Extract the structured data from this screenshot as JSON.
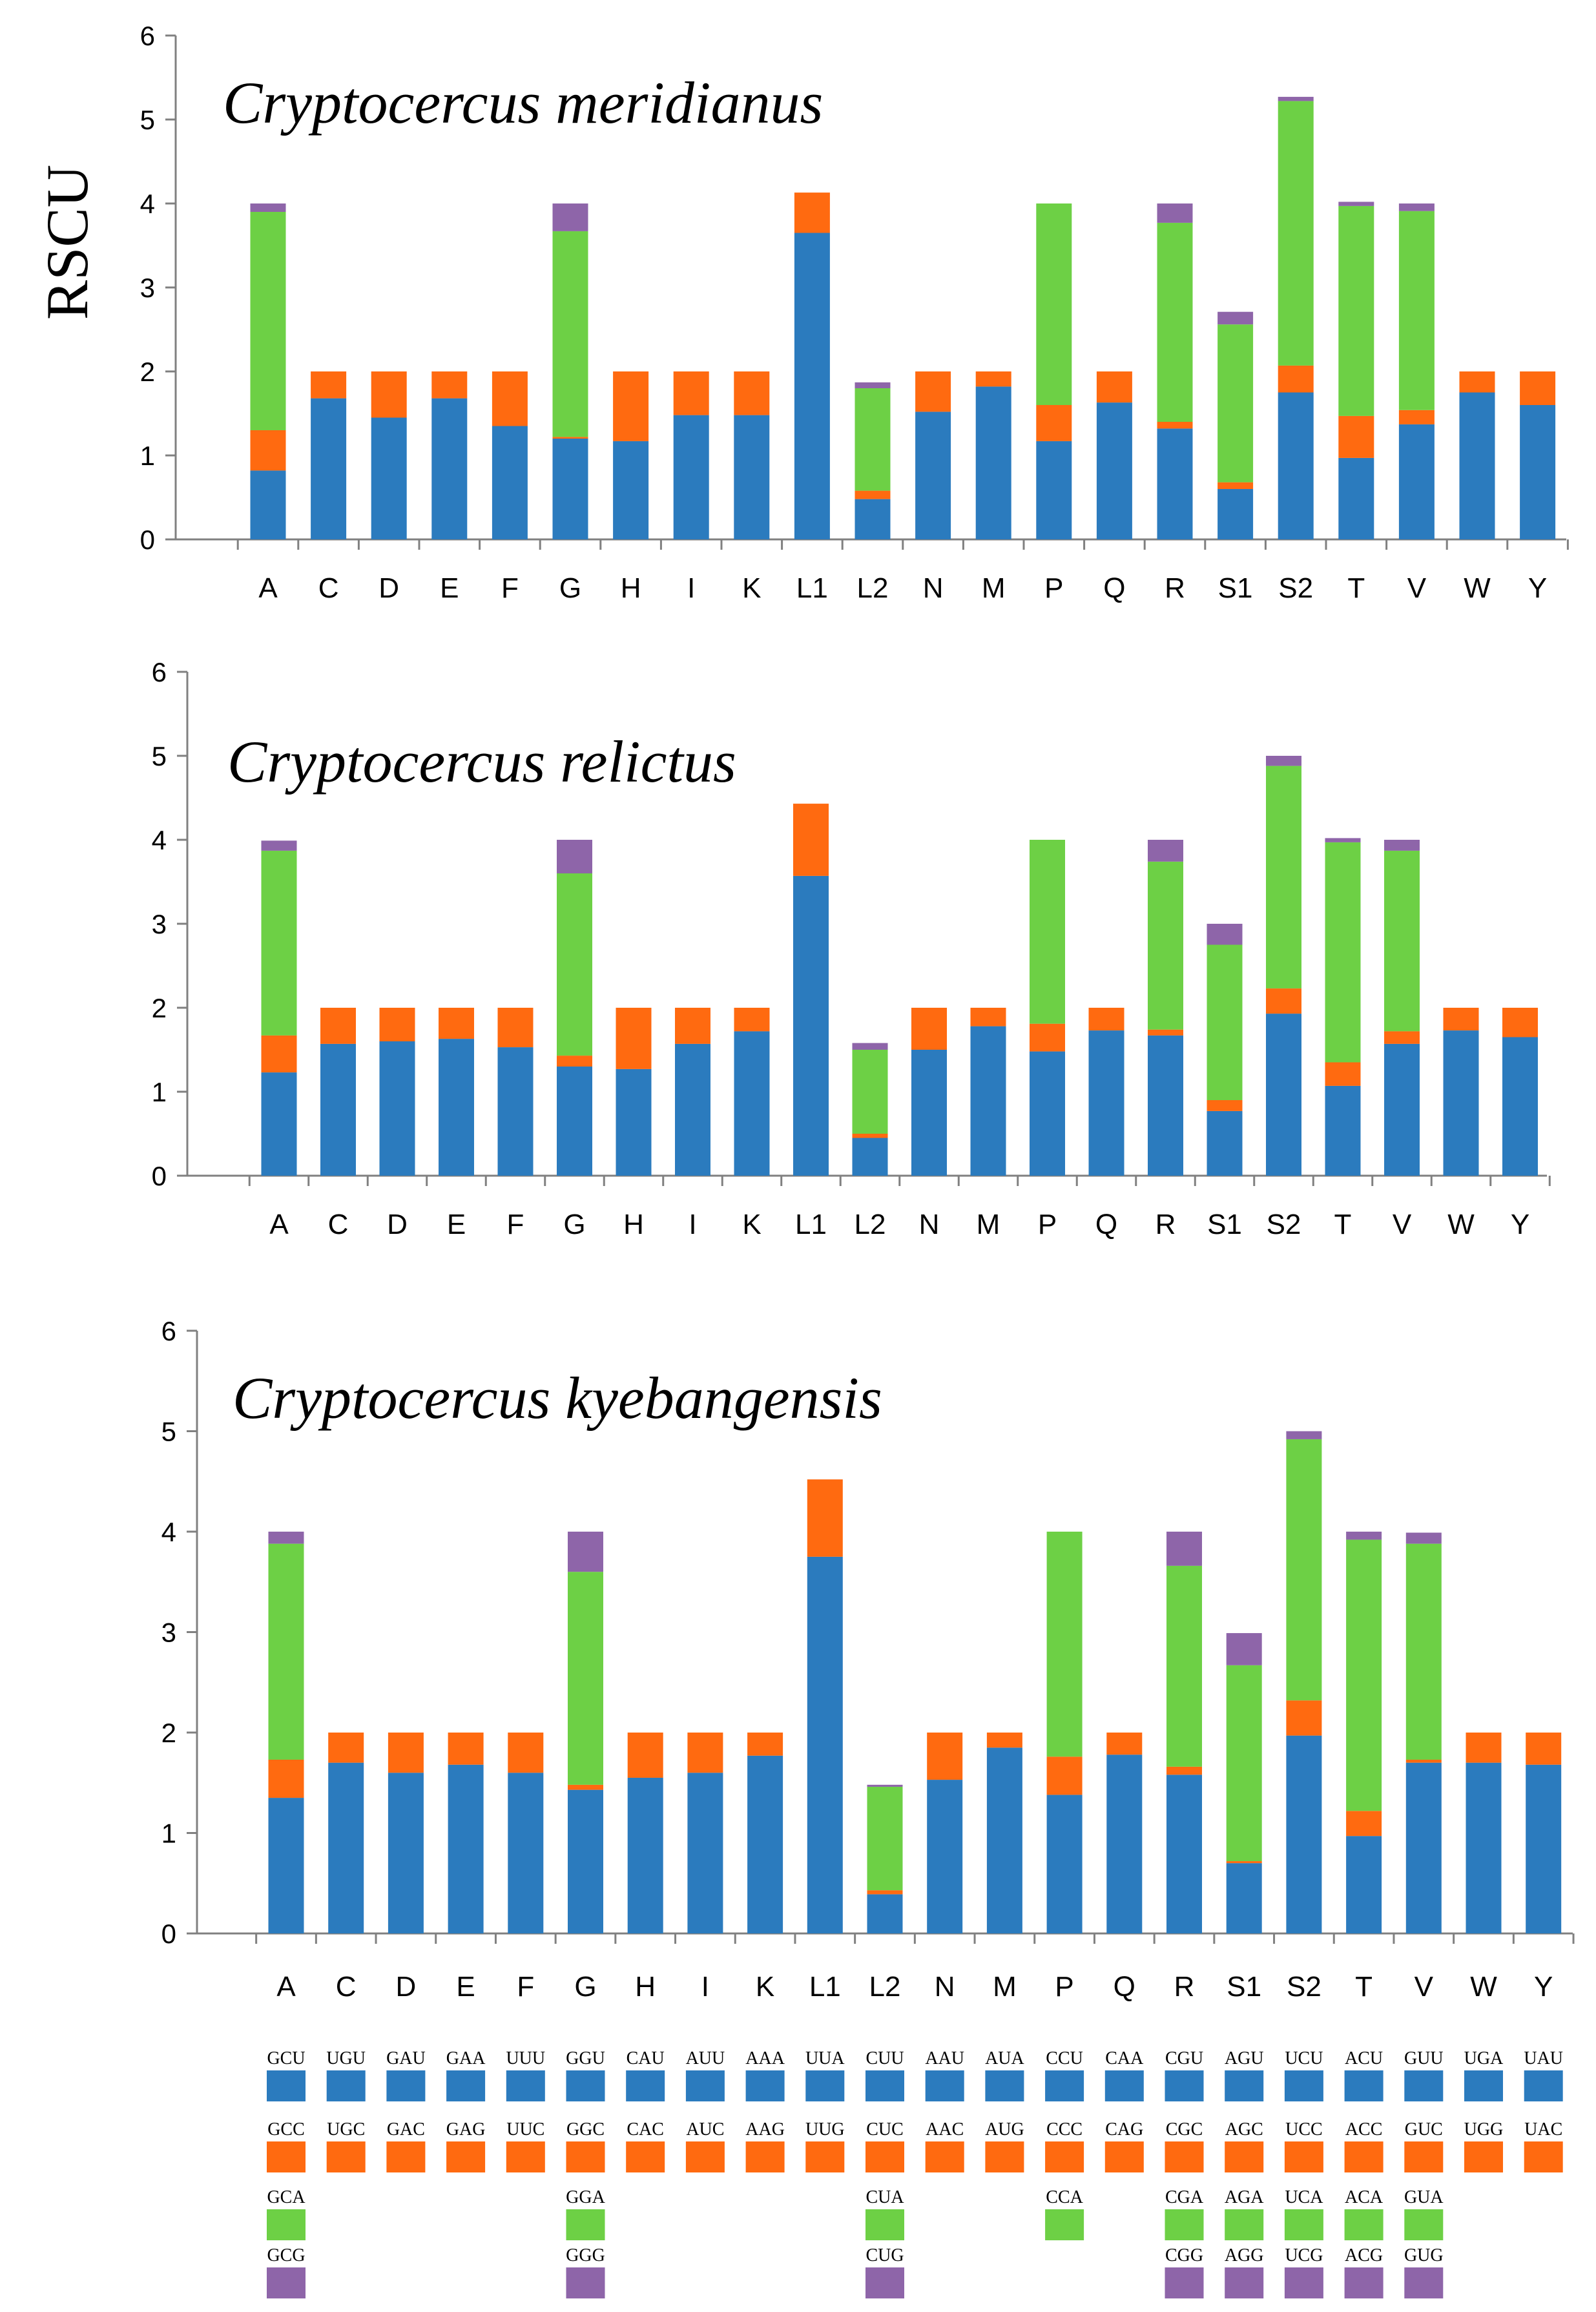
{
  "colors": {
    "blue": "#2B7BBE",
    "orange": "#FF6A10",
    "green": "#6DD045",
    "purple": "#8E65A9"
  },
  "y_axis_label": "RSCU",
  "chart_data": [
    {
      "type": "bar",
      "stacked": true,
      "title": "Cryptocercus meridianus",
      "ylabel": "RSCU",
      "ylim": [
        0,
        6
      ],
      "yticks": [
        "0",
        "1",
        "2",
        "3",
        "4",
        "5",
        "6"
      ],
      "categories": [
        "A",
        "C",
        "D",
        "E",
        "F",
        "G",
        "H",
        "I",
        "K",
        "L1",
        "L2",
        "N",
        "M",
        "P",
        "Q",
        "R",
        "S1",
        "S2",
        "T",
        "V",
        "W",
        "Y"
      ],
      "series": [
        {
          "name": "codon 1",
          "color": "blue",
          "values": [
            0.82,
            1.68,
            1.45,
            1.68,
            1.35,
            1.2,
            1.17,
            1.48,
            1.48,
            3.65,
            0.48,
            1.52,
            1.82,
            1.17,
            1.63,
            1.32,
            0.6,
            1.75,
            0.97,
            1.37,
            1.75,
            1.6
          ]
        },
        {
          "name": "codon 2",
          "color": "orange",
          "values": [
            0.48,
            0.32,
            0.55,
            0.32,
            0.65,
            0.02,
            0.83,
            0.52,
            0.52,
            0.48,
            0.1,
            0.48,
            0.18,
            0.43,
            0.37,
            0.08,
            0.08,
            0.32,
            0.5,
            0.17,
            0.25,
            0.4
          ]
        },
        {
          "name": "codon 3",
          "color": "green",
          "values": [
            2.6,
            0,
            0,
            0,
            0,
            2.45,
            0,
            0,
            0,
            0,
            1.22,
            0,
            0,
            2.4,
            0,
            2.37,
            1.88,
            3.15,
            2.5,
            2.37,
            0,
            0
          ]
        },
        {
          "name": "codon 4",
          "color": "purple",
          "values": [
            0.1,
            0,
            0,
            0,
            0,
            0.33,
            0,
            0,
            0,
            0,
            0.07,
            0,
            0,
            0,
            0,
            0.23,
            0.15,
            0.05,
            0.05,
            0.09,
            0,
            0
          ]
        }
      ]
    },
    {
      "type": "bar",
      "stacked": true,
      "title": "Cryptocercus relictus",
      "ylabel": "",
      "ylim": [
        0,
        6
      ],
      "yticks": [
        "0",
        "1",
        "2",
        "3",
        "4",
        "5",
        "6"
      ],
      "categories": [
        "A",
        "C",
        "D",
        "E",
        "F",
        "G",
        "H",
        "I",
        "K",
        "L1",
        "L2",
        "N",
        "M",
        "P",
        "Q",
        "R",
        "S1",
        "S2",
        "T",
        "V",
        "W",
        "Y"
      ],
      "series": [
        {
          "name": "codon 1",
          "color": "blue",
          "values": [
            1.23,
            1.57,
            1.6,
            1.63,
            1.53,
            1.3,
            1.27,
            1.57,
            1.72,
            3.57,
            0.45,
            1.5,
            1.78,
            1.48,
            1.73,
            1.67,
            0.77,
            1.93,
            1.07,
            1.57,
            1.73,
            1.65
          ]
        },
        {
          "name": "codon 2",
          "color": "orange",
          "values": [
            0.44,
            0.43,
            0.4,
            0.37,
            0.47,
            0.13,
            0.73,
            0.43,
            0.28,
            0.86,
            0.05,
            0.5,
            0.22,
            0.33,
            0.27,
            0.07,
            0.13,
            0.3,
            0.28,
            0.15,
            0.27,
            0.35
          ]
        },
        {
          "name": "codon 3",
          "color": "green",
          "values": [
            2.2,
            0,
            0,
            0,
            0,
            2.17,
            0,
            0,
            0,
            0,
            1.0,
            0,
            0,
            2.19,
            0,
            2.0,
            1.85,
            2.65,
            2.62,
            2.15,
            0,
            0
          ]
        },
        {
          "name": "codon 4",
          "color": "purple",
          "values": [
            0.12,
            0,
            0,
            0,
            0,
            0.4,
            0,
            0,
            0,
            0,
            0.08,
            0,
            0,
            0,
            0,
            0.26,
            0.25,
            0.12,
            0.05,
            0.13,
            0,
            0
          ]
        }
      ]
    },
    {
      "type": "bar",
      "stacked": true,
      "title": "Cryptocercus kyebangensis",
      "ylabel": "",
      "ylim": [
        0,
        6
      ],
      "yticks": [
        "0",
        "1",
        "2",
        "3",
        "4",
        "5",
        "6"
      ],
      "categories": [
        "A",
        "C",
        "D",
        "E",
        "F",
        "G",
        "H",
        "I",
        "K",
        "L1",
        "L2",
        "N",
        "M",
        "P",
        "Q",
        "R",
        "S1",
        "S2",
        "T",
        "V",
        "W",
        "Y"
      ],
      "series": [
        {
          "name": "codon 1",
          "color": "blue",
          "values": [
            1.35,
            1.7,
            1.6,
            1.68,
            1.6,
            1.43,
            1.55,
            1.6,
            1.77,
            3.75,
            0.39,
            1.53,
            1.85,
            1.38,
            1.78,
            1.58,
            0.7,
            1.97,
            0.97,
            1.7,
            1.7,
            1.68
          ]
        },
        {
          "name": "codon 2",
          "color": "orange",
          "values": [
            0.38,
            0.3,
            0.4,
            0.32,
            0.4,
            0.05,
            0.45,
            0.4,
            0.23,
            0.77,
            0.04,
            0.47,
            0.15,
            0.38,
            0.22,
            0.08,
            0.02,
            0.35,
            0.25,
            0.03,
            0.3,
            0.32
          ]
        },
        {
          "name": "codon 3",
          "color": "green",
          "values": [
            2.15,
            0,
            0,
            0,
            0,
            2.12,
            0,
            0,
            0,
            0,
            1.03,
            0,
            0,
            2.24,
            0,
            2.0,
            1.95,
            2.6,
            2.7,
            2.15,
            0,
            0
          ]
        },
        {
          "name": "codon 4",
          "color": "purple",
          "values": [
            0.12,
            0,
            0,
            0,
            0,
            0.4,
            0,
            0,
            0,
            0,
            0.02,
            0,
            0,
            0,
            0,
            0.34,
            0.32,
            0.08,
            0.08,
            0.11,
            0,
            0
          ]
        }
      ]
    }
  ],
  "codon_legend": [
    {
      "category": "A",
      "codons": [
        "GCU",
        "GCC",
        "GCA",
        "GCG"
      ]
    },
    {
      "category": "C",
      "codons": [
        "UGU",
        "UGC"
      ]
    },
    {
      "category": "D",
      "codons": [
        "GAU",
        "GAC"
      ]
    },
    {
      "category": "E",
      "codons": [
        "GAA",
        "GAG"
      ]
    },
    {
      "category": "F",
      "codons": [
        "UUU",
        "UUC"
      ]
    },
    {
      "category": "G",
      "codons": [
        "GGU",
        "GGC",
        "GGA",
        "GGG"
      ]
    },
    {
      "category": "H",
      "codons": [
        "CAU",
        "CAC"
      ]
    },
    {
      "category": "I",
      "codons": [
        "AUU",
        "AUC"
      ]
    },
    {
      "category": "K",
      "codons": [
        "AAA",
        "AAG"
      ]
    },
    {
      "category": "L1",
      "codons": [
        "UUA",
        "UUG"
      ]
    },
    {
      "category": "L2",
      "codons": [
        "CUU",
        "CUC",
        "CUA",
        "CUG"
      ]
    },
    {
      "category": "N",
      "codons": [
        "AAU",
        "AAC"
      ]
    },
    {
      "category": "M",
      "codons": [
        "AUA",
        "AUG"
      ]
    },
    {
      "category": "P",
      "codons": [
        "CCU",
        "CCC",
        "CCA"
      ]
    },
    {
      "category": "Q",
      "codons": [
        "CAA",
        "CAG"
      ]
    },
    {
      "category": "R",
      "codons": [
        "CGU",
        "CGC",
        "CGA",
        "CGG"
      ]
    },
    {
      "category": "S1",
      "codons": [
        "AGU",
        "AGC",
        "AGA",
        "AGG"
      ]
    },
    {
      "category": "S2",
      "codons": [
        "UCU",
        "UCC",
        "UCA",
        "UCG"
      ]
    },
    {
      "category": "T",
      "codons": [
        "ACU",
        "ACC",
        "ACA",
        "ACG"
      ]
    },
    {
      "category": "V",
      "codons": [
        "GUU",
        "GUC",
        "GUA",
        "GUG"
      ]
    },
    {
      "category": "W",
      "codons": [
        "UGA",
        "UGG"
      ]
    },
    {
      "category": "Y",
      "codons": [
        "UAU",
        "UAC"
      ]
    }
  ]
}
